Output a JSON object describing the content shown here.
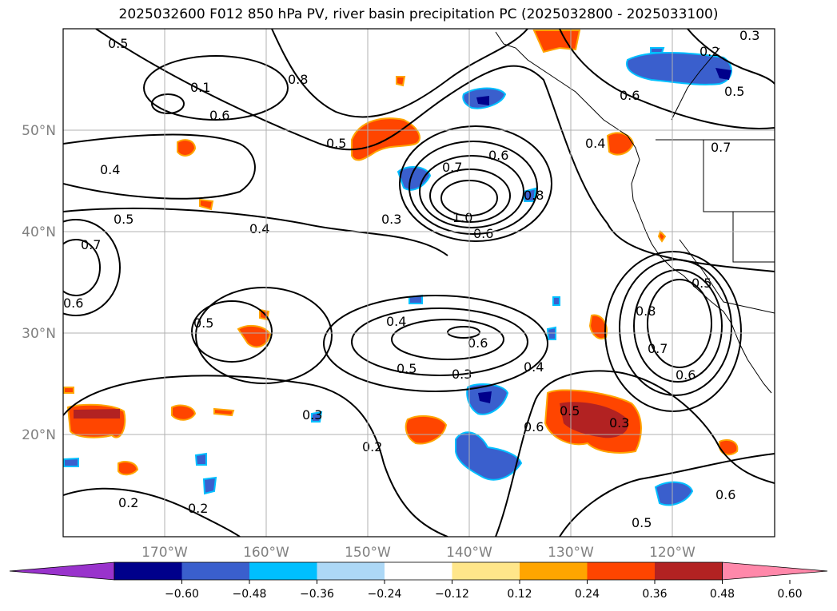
{
  "title": "2025032600 F012 850 hPa PV, river basin precipitation PC (2025032800 - 2025033100)",
  "lat_labels": [
    "50°N",
    "40°N",
    "30°N",
    "20°N"
  ],
  "lon_labels": [
    "170°W",
    "160°W",
    "150°W",
    "140°W",
    "130°W",
    "120°W"
  ],
  "colorbar": {
    "ticks": [
      "−0.60",
      "−0.48",
      "−0.36",
      "−0.24",
      "−0.12",
      "0.12",
      "0.24",
      "0.36",
      "0.48",
      "0.60"
    ],
    "colors": [
      "#9933cc",
      "#00008b",
      "#3a5fcd",
      "#00bfff",
      "#add8f6",
      "#ffffff",
      "#ffe68a",
      "#ffa500",
      "#ff4500",
      "#b22222",
      "#ff88aa"
    ]
  },
  "contour_labels": [
    "0.5",
    "0.8",
    "0.1",
    "0.6",
    "0.5",
    "0.4",
    "0.7",
    "0.6",
    "0.8",
    "1.0",
    "0.6",
    "0.3",
    "0.4",
    "0.5",
    "0.7",
    "0.6",
    "0.5",
    "0.4",
    "0.5",
    "0.6",
    "0.3",
    "0.4",
    "0.5",
    "0.6",
    "0.3",
    "0.2",
    "0.2",
    "0.2",
    "0.6",
    "0.5",
    "0.3",
    "0.8",
    "0.7",
    "0.6",
    "0.5",
    "0.2",
    "0.3",
    "0.6",
    "0.4",
    "0.5",
    "0.7"
  ]
}
